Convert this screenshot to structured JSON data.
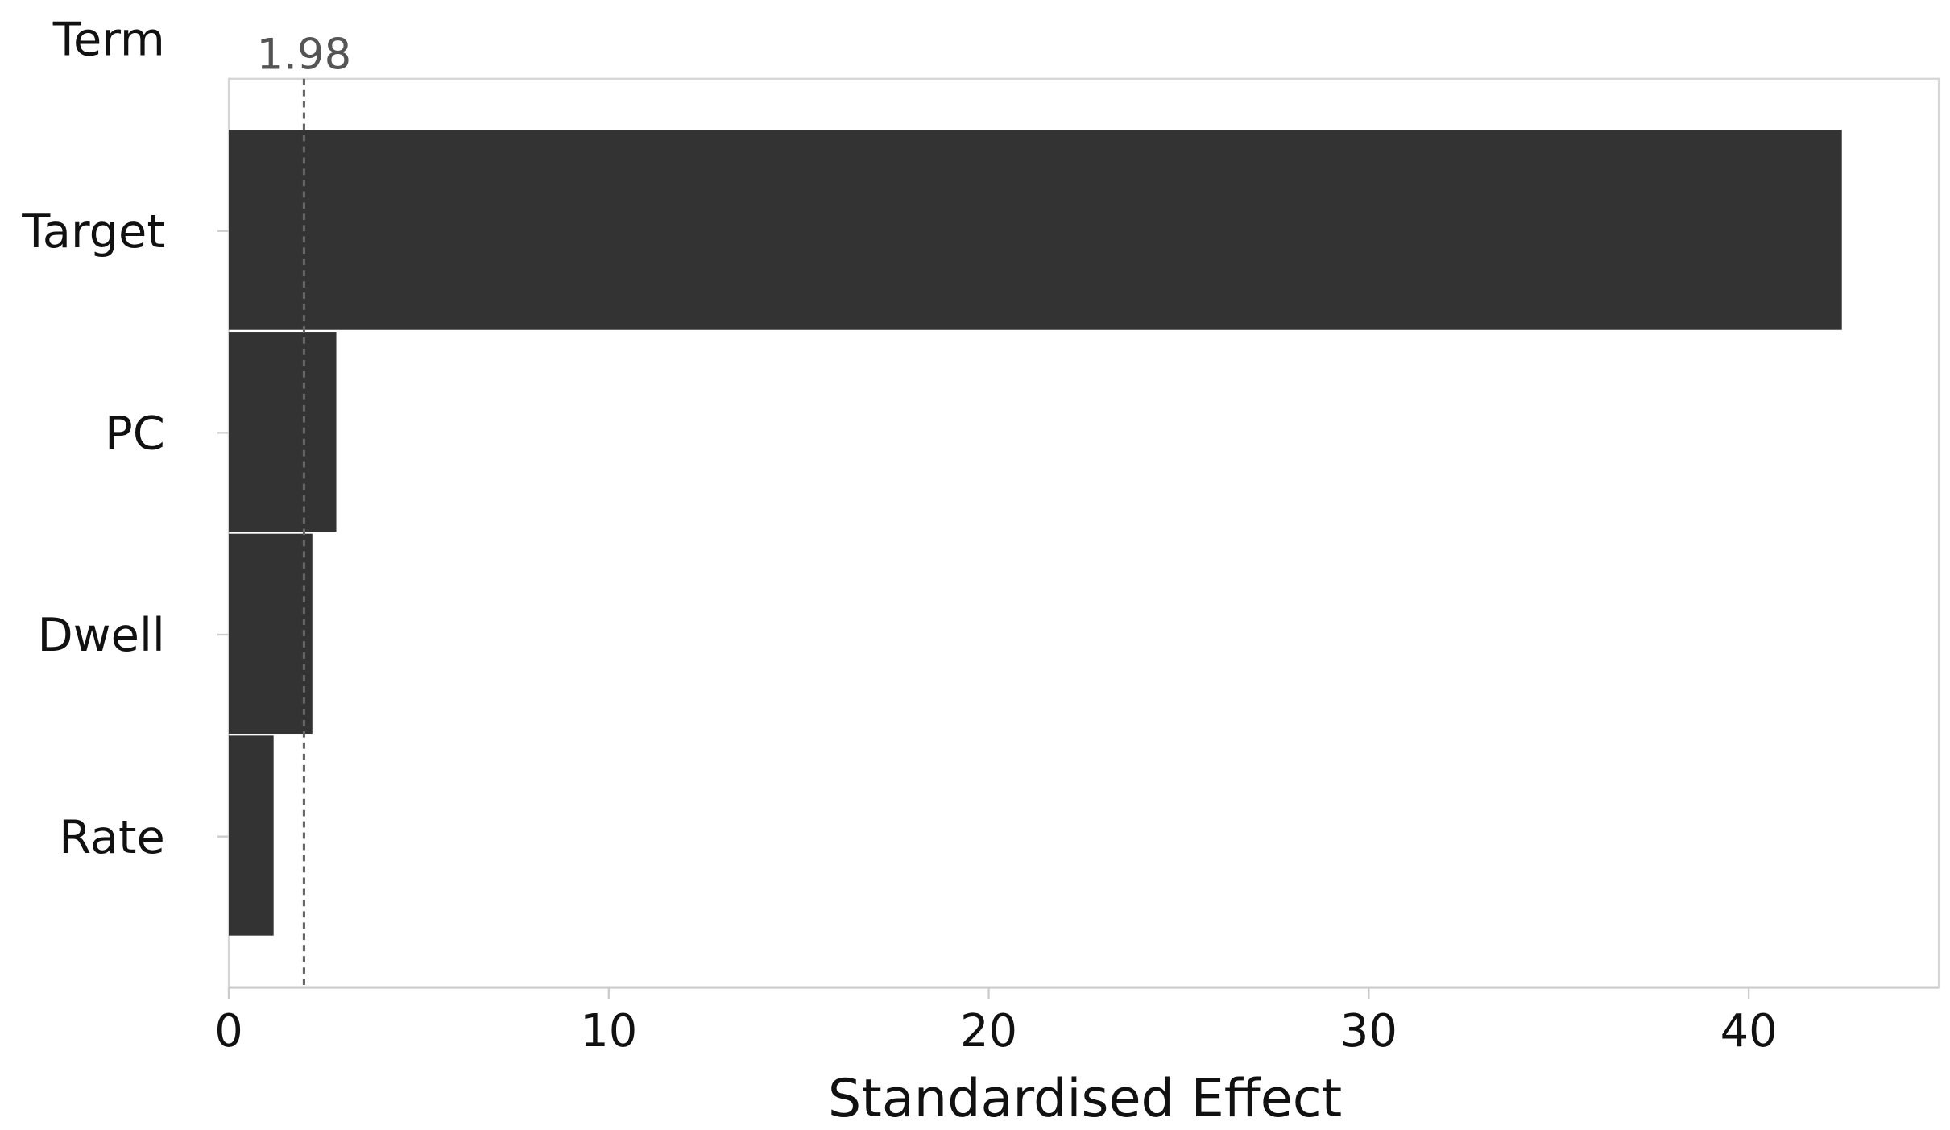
{
  "chart_data": {
    "type": "bar",
    "orientation": "horizontal",
    "categories": [
      "Target",
      "PC",
      "Dwell",
      "Rate"
    ],
    "values": [
      42.45,
      2.83,
      2.2,
      1.18
    ],
    "xlabel": "Standardised Effect",
    "ylabel": "Term",
    "xlim": [
      0,
      45
    ],
    "xticks": [
      0,
      10,
      20,
      30,
      40
    ],
    "xtick_labels": [
      "0",
      "10",
      "20",
      "30",
      "40"
    ],
    "reference_line": {
      "value": 1.98,
      "label": "1.98",
      "style": "dashed"
    },
    "grid": false,
    "bar_color": "#333333",
    "reference_color": "#666666"
  }
}
